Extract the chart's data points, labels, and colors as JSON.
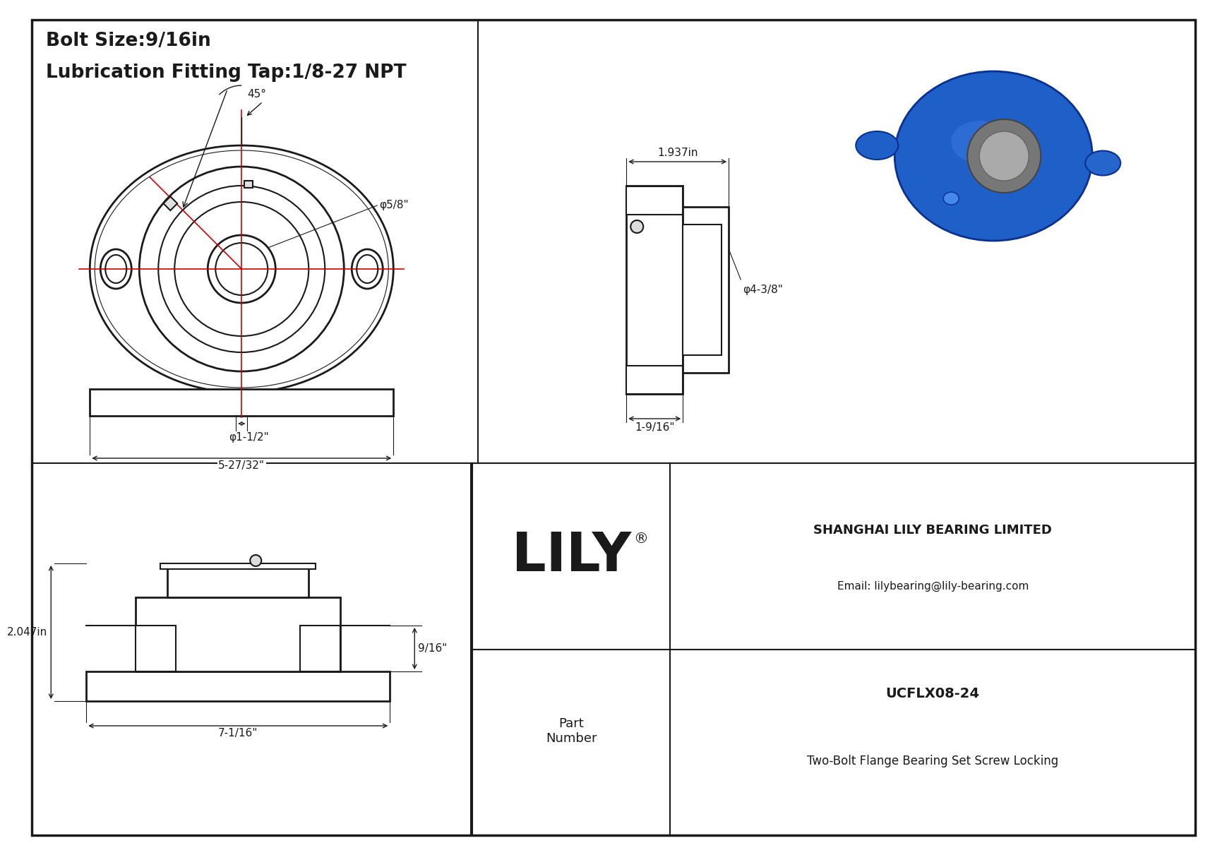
{
  "bg_color": "#ffffff",
  "line_color": "#1a1a1a",
  "red_color": "#cc0000",
  "title_line1": "Bolt Size:9/16in",
  "title_line2": "Lubrication Fitting Tap:1/8-27 NPT",
  "company_name": "SHANGHAI LILY BEARING LIMITED",
  "company_email": "Email: lilybearing@lily-bearing.com",
  "part_number_label": "Part\nNumber",
  "part_number": "UCFLX08-24",
  "part_desc": "Two-Bolt Flange Bearing Set Screw Locking",
  "lily_text": "LILY",
  "dim_45": "45°",
  "dim_bore": "φ5/8\"",
  "dim_bolt_circle": "φ1-1/2\"",
  "dim_width": "5-27/32\"",
  "dim_height": "1.937in",
  "dim_od": "φ4-3/8\"",
  "dim_depth1": "1-9/16\"",
  "dim_front_height": "2.047in",
  "dim_bolt_h": "9/16\"",
  "dim_base_width": "7-1/16\""
}
